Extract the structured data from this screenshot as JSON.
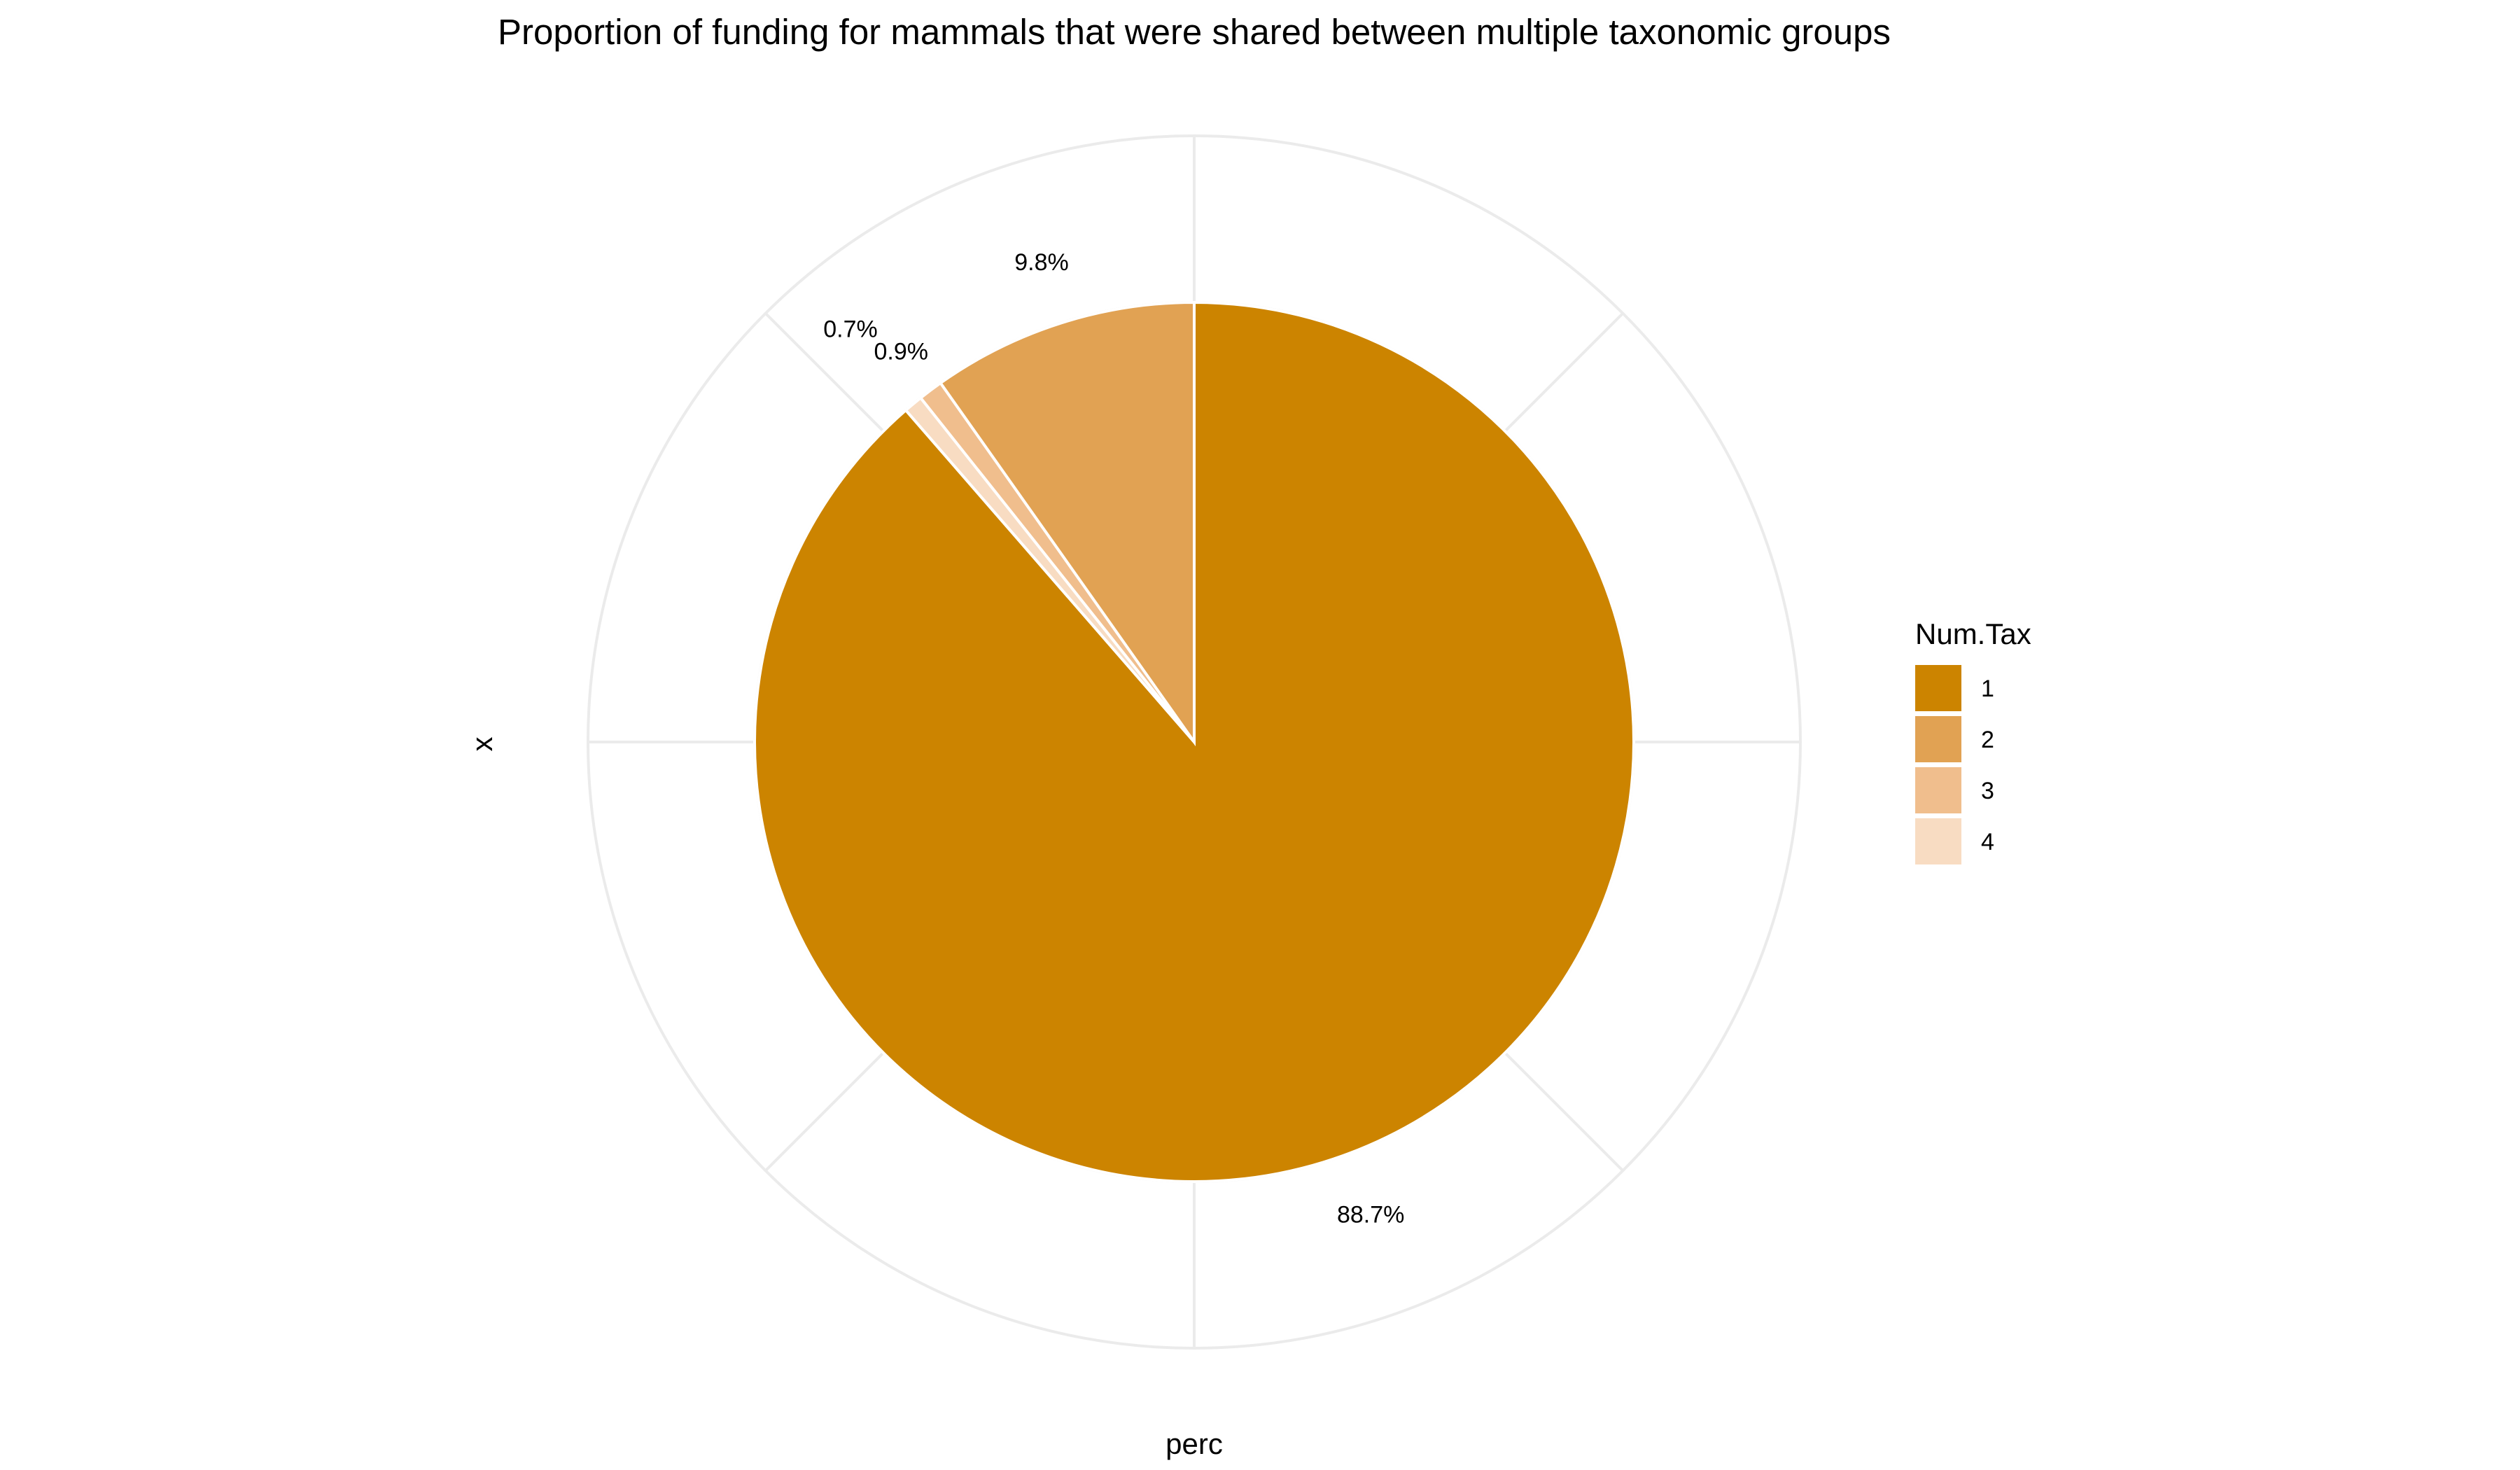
{
  "chart_data": {
    "type": "pie",
    "title": "Proportion of funding for mammals that were shared between multiple taxonomic groups",
    "xlabel": "perc",
    "ylabel": "x",
    "grid": true,
    "legend": {
      "title": "Num.Tax",
      "placement": "right"
    },
    "categories": [
      "1",
      "2",
      "3",
      "4"
    ],
    "values": [
      88.7,
      9.8,
      0.9,
      0.7
    ],
    "labels": [
      "88.7%",
      "9.8%",
      "0.9%",
      "0.7%"
    ],
    "colors": [
      "#CC8400",
      "#E1A253",
      "#F0BE8D",
      "#F8DCC2"
    ]
  }
}
